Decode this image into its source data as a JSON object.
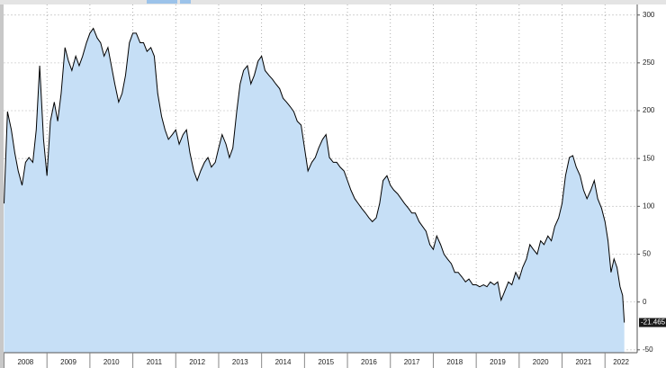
{
  "chart_data": {
    "type": "area",
    "x": [
      2008.0,
      2008.08,
      2008.17,
      2008.25,
      2008.33,
      2008.42,
      2008.5,
      2008.58,
      2008.67,
      2008.75,
      2008.83,
      2008.92,
      2009.0,
      2009.08,
      2009.17,
      2009.25,
      2009.33,
      2009.42,
      2009.5,
      2009.58,
      2009.67,
      2009.75,
      2009.83,
      2009.92,
      2010.0,
      2010.08,
      2010.17,
      2010.25,
      2010.33,
      2010.42,
      2010.5,
      2010.58,
      2010.67,
      2010.75,
      2010.83,
      2010.92,
      2011.0,
      2011.08,
      2011.17,
      2011.25,
      2011.33,
      2011.42,
      2011.5,
      2011.58,
      2011.67,
      2011.75,
      2011.83,
      2011.92,
      2012.0,
      2012.08,
      2012.17,
      2012.25,
      2012.33,
      2012.42,
      2012.5,
      2012.58,
      2012.67,
      2012.75,
      2012.83,
      2012.92,
      2013.0,
      2013.08,
      2013.17,
      2013.25,
      2013.33,
      2013.42,
      2013.5,
      2013.58,
      2013.67,
      2013.75,
      2013.83,
      2013.92,
      2014.0,
      2014.08,
      2014.17,
      2014.25,
      2014.33,
      2014.42,
      2014.5,
      2014.58,
      2014.67,
      2014.75,
      2014.83,
      2014.92,
      2015.0,
      2015.08,
      2015.17,
      2015.25,
      2015.33,
      2015.42,
      2015.5,
      2015.58,
      2015.67,
      2015.75,
      2015.83,
      2015.92,
      2016.0,
      2016.08,
      2016.17,
      2016.25,
      2016.33,
      2016.42,
      2016.5,
      2016.58,
      2016.67,
      2016.75,
      2016.83,
      2016.92,
      2017.0,
      2017.08,
      2017.17,
      2017.25,
      2017.33,
      2017.42,
      2017.5,
      2017.58,
      2017.67,
      2017.75,
      2017.83,
      2017.92,
      2018.0,
      2018.08,
      2018.17,
      2018.25,
      2018.33,
      2018.42,
      2018.5,
      2018.58,
      2018.67,
      2018.75,
      2018.83,
      2018.92,
      2019.0,
      2019.08,
      2019.17,
      2019.25,
      2019.33,
      2019.42,
      2019.5,
      2019.58,
      2019.67,
      2019.75,
      2019.83,
      2019.92,
      2020.0,
      2020.08,
      2020.17,
      2020.25,
      2020.33,
      2020.42,
      2020.5,
      2020.58,
      2020.67,
      2020.75,
      2020.83,
      2020.92,
      2021.0,
      2021.08,
      2021.17,
      2021.25,
      2021.33,
      2021.42,
      2021.5,
      2021.58,
      2021.67,
      2021.75,
      2021.83,
      2021.92,
      2022.0,
      2022.07,
      2022.14,
      2022.21,
      2022.28,
      2022.35,
      2022.41,
      2022.45
    ],
    "values": [
      103,
      199,
      180,
      156,
      137,
      122,
      146,
      151,
      146,
      180,
      247,
      170,
      132,
      189,
      209,
      189,
      218,
      266,
      252,
      242,
      257,
      247,
      257,
      271,
      281,
      286,
      276,
      271,
      257,
      266,
      247,
      228,
      209,
      218,
      237,
      271,
      281,
      281,
      271,
      271,
      262,
      266,
      257,
      218,
      194,
      180,
      170,
      175,
      180,
      165,
      175,
      180,
      156,
      137,
      127,
      137,
      146,
      151,
      141,
      146,
      161,
      175,
      165,
      151,
      161,
      199,
      228,
      242,
      247,
      228,
      237,
      252,
      257,
      242,
      237,
      233,
      228,
      223,
      213,
      209,
      204,
      199,
      189,
      185,
      161,
      137,
      146,
      151,
      161,
      170,
      175,
      151,
      146,
      146,
      141,
      137,
      127,
      117,
      108,
      103,
      98,
      93,
      88,
      84,
      88,
      103,
      127,
      132,
      122,
      117,
      113,
      108,
      103,
      98,
      93,
      93,
      84,
      79,
      74,
      60,
      55,
      69,
      60,
      50,
      45,
      40,
      31,
      31,
      26,
      21,
      24,
      18,
      18,
      16,
      18,
      16,
      21,
      18,
      21,
      2,
      12,
      21,
      18,
      31,
      24,
      36,
      45,
      60,
      55,
      50,
      64,
      60,
      69,
      64,
      79,
      88,
      103,
      132,
      151,
      153,
      141,
      132,
      117,
      108,
      117,
      127,
      108,
      98,
      84,
      64,
      31,
      45,
      36,
      16,
      7,
      -21.465
    ],
    "color": "#000000",
    "fill_color": "#c6dff6",
    "xlim": [
      2008,
      2022.75
    ],
    "xticks": [
      {
        "value": 2008,
        "label": "2008"
      },
      {
        "value": 2009,
        "label": "2009"
      },
      {
        "value": 2010,
        "label": "2010"
      },
      {
        "value": 2011,
        "label": "2011"
      },
      {
        "value": 2012,
        "label": "2012"
      },
      {
        "value": 2013,
        "label": "2013"
      },
      {
        "value": 2014,
        "label": "2014"
      },
      {
        "value": 2015,
        "label": "2015"
      },
      {
        "value": 2016,
        "label": "2016"
      },
      {
        "value": 2017,
        "label": "2017"
      },
      {
        "value": 2018,
        "label": "2018"
      },
      {
        "value": 2019,
        "label": "2019"
      },
      {
        "value": 2020,
        "label": "2020"
      },
      {
        "value": 2021,
        "label": "2021"
      },
      {
        "value": 2022,
        "label": "2022"
      }
    ],
    "ylim": [
      -53,
      311
    ],
    "yticks": [
      -50,
      0,
      50,
      100,
      150,
      200,
      250,
      300
    ],
    "grid": true
  }
}
